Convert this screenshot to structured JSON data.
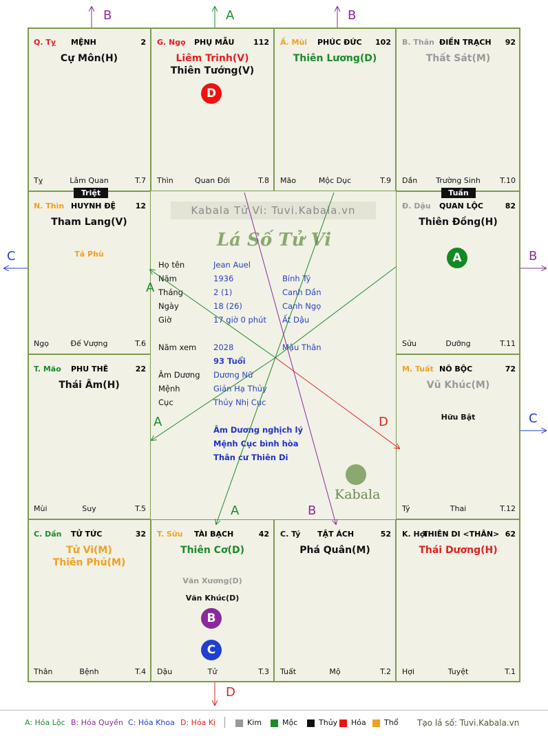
{
  "watermark": "Kabala Tử Vi: Tuvi.Kabala.vn",
  "logo_script": "Lá Số Tử Vi",
  "brand_logo": "Kabala",
  "palaces": [
    {
      "id": "ty",
      "can": "Q. Tỵ",
      "can_color": "#e02020",
      "name": "MỆNH",
      "num": "2",
      "stars": [
        {
          "t": "Cự Môn(H)",
          "c": "#111"
        }
      ],
      "minor": [],
      "branch": "Tỵ",
      "stage": "Lâm Quan",
      "age": "T.7"
    },
    {
      "id": "ngo",
      "can": "G. Ngọ",
      "can_color": "#e02020",
      "name": "PHỤ MẪU",
      "num": "112",
      "stars": [
        {
          "t": "Liêm Trinh(V)",
          "c": "#e02020"
        },
        {
          "t": "Thiên Tướng(V)",
          "c": "#111"
        }
      ],
      "minor": [],
      "branch": "Thìn",
      "stage": "Quan Đới",
      "age": "T.8"
    },
    {
      "id": "mui",
      "can": "Ấ. Mùi",
      "can_color": "#f0a020",
      "name": "PHÚC ĐỨC",
      "num": "102",
      "stars": [
        {
          "t": "Thiên Lương(D)",
          "c": "#1a8a2a"
        }
      ],
      "minor": [],
      "branch": "Mão",
      "stage": "Mộc Dục",
      "age": "T.9"
    },
    {
      "id": "than",
      "can": "B. Thân",
      "can_color": "#999",
      "name": "ĐIỀN TRẠCH",
      "num": "92",
      "stars": [
        {
          "t": "Thất Sát(M)",
          "c": "#999"
        }
      ],
      "minor": [],
      "branch": "Dần",
      "stage": "Trường Sinh",
      "age": "T.10"
    },
    {
      "id": "thin",
      "can": "N. Thìn",
      "can_color": "#f0a020",
      "name": "HUYNH ĐỆ",
      "num": "12",
      "stars": [
        {
          "t": "Tham Lang(V)",
          "c": "#111"
        }
      ],
      "minor": [
        {
          "t": "Tả Phù",
          "c": "#f0a020"
        }
      ],
      "branch": "Ngọ",
      "stage": "Đế Vượng",
      "age": "T.6"
    },
    {
      "id": "dau",
      "can": "Đ. Dậu",
      "can_color": "#999",
      "name": "QUAN LỘC",
      "num": "82",
      "stars": [
        {
          "t": "Thiên Đồng(H)",
          "c": "#111"
        }
      ],
      "minor": [],
      "branch": "Sửu",
      "stage": "Dưỡng",
      "age": "T.11"
    },
    {
      "id": "mao",
      "can": "T. Mão",
      "can_color": "#1a8a2a",
      "name": "PHU THÊ",
      "num": "22",
      "stars": [
        {
          "t": "Thái Âm(H)",
          "c": "#111"
        }
      ],
      "minor": [],
      "branch": "Mùi",
      "stage": "Suy",
      "age": "T.5"
    },
    {
      "id": "tuat",
      "can": "M. Tuất",
      "can_color": "#f0a020",
      "name": "NÔ BỘC",
      "num": "72",
      "stars": [
        {
          "t": "Vũ Khúc(M)",
          "c": "#999"
        }
      ],
      "minor": [
        {
          "t": "Hữu Bật",
          "c": "#111"
        }
      ],
      "branch": "Tý",
      "stage": "Thai",
      "age": "T.12"
    },
    {
      "id": "dan",
      "can": "C. Dần",
      "can_color": "#1a8a2a",
      "name": "TỬ TỨC",
      "num": "32",
      "stars": [
        {
          "t": "Tử Vi(M)",
          "c": "#f0a020"
        },
        {
          "t": "Thiên Phủ(M)",
          "c": "#f0a020"
        }
      ],
      "minor": [],
      "branch": "Thân",
      "stage": "Bệnh",
      "age": "T.4"
    },
    {
      "id": "suu",
      "can": "T. Sửu",
      "can_color": "#f0a020",
      "name": "TÀI BẠCH",
      "num": "42",
      "stars": [
        {
          "t": "Thiên Cơ(D)",
          "c": "#1a8a2a"
        }
      ],
      "minor": [
        {
          "t": "Văn Xương(D)",
          "c": "#999"
        },
        {
          "t": "Văn Khúc(D)",
          "c": "#111"
        }
      ],
      "branch": "Dậu",
      "stage": "Tử",
      "age": "T.3"
    },
    {
      "id": "ty2",
      "can": "C. Tý",
      "can_color": "#111",
      "name": "TẬT ÁCH",
      "num": "52",
      "stars": [
        {
          "t": "Phá Quân(M)",
          "c": "#111"
        }
      ],
      "minor": [],
      "branch": "Tuất",
      "stage": "Mộ",
      "age": "T.2"
    },
    {
      "id": "hoi",
      "can": "K. Hợi",
      "can_color": "#111",
      "name": "THIÊN DI <THÂN>",
      "num": "62",
      "stars": [
        {
          "t": "Thái Dương(H)",
          "c": "#e02020"
        }
      ],
      "minor": [],
      "branch": "Hợi",
      "stage": "Tuyệt",
      "age": "T.1"
    }
  ],
  "tags": {
    "triet": "Triệt",
    "tuan": "Tuần"
  },
  "center": {
    "rows": [
      {
        "label": "Họ tên",
        "v1": "Jean Auel",
        "v2": ""
      },
      {
        "label": "Năm",
        "v1": "1936",
        "v2": "Bính Tý"
      },
      {
        "label": "Tháng",
        "v1": "2  (1)",
        "v2": "Canh Dần"
      },
      {
        "label": "Ngày",
        "v1": "18  (26)",
        "v2": "Canh Ngọ"
      },
      {
        "label": "Giờ",
        "v1": "17 giờ 0 phút",
        "v2": "Ất Dậu"
      },
      {
        "label": "Năm xem",
        "v1": "2028",
        "v2": "Mậu Thân"
      }
    ],
    "age_text": "93 Tuổi",
    "rows2": [
      {
        "label": "Âm Dương",
        "v1": "Dương Nữ"
      },
      {
        "label": "Mệnh",
        "v1": "Giản Hạ Thủy"
      },
      {
        "label": "Cục",
        "v1": "Thủy Nhị Cục"
      }
    ],
    "notes": [
      "Âm Dương nghịch lý",
      "Mệnh Cục bình hòa",
      "Thân cư Thiên Di"
    ]
  },
  "circles": {
    "d": "D",
    "a": "A",
    "b": "B",
    "c": "C"
  },
  "arrow_letters": {
    "a": "A",
    "b": "B",
    "c": "C",
    "d": "D"
  },
  "legend": {
    "a": "A: Hóa Lộc",
    "b": "B: Hóa Quyền",
    "c": "C: Hóa Khoa",
    "d": "D: Hóa Kị",
    "elements": [
      {
        "t": "Kim",
        "c": "#999999"
      },
      {
        "t": "Mộc",
        "c": "#1a8a2a"
      },
      {
        "t": "Thủy",
        "c": "#111111"
      },
      {
        "t": "Hỏa",
        "c": "#ee1111"
      },
      {
        "t": "Thổ",
        "c": "#f0a020"
      }
    ],
    "site": "Tạo lá số: Tuvi.Kabala.vn"
  },
  "colors": {
    "green": "#1a8a2a",
    "purple": "#8a2a9a",
    "blue": "#1f3fd0",
    "red": "#e02020"
  }
}
